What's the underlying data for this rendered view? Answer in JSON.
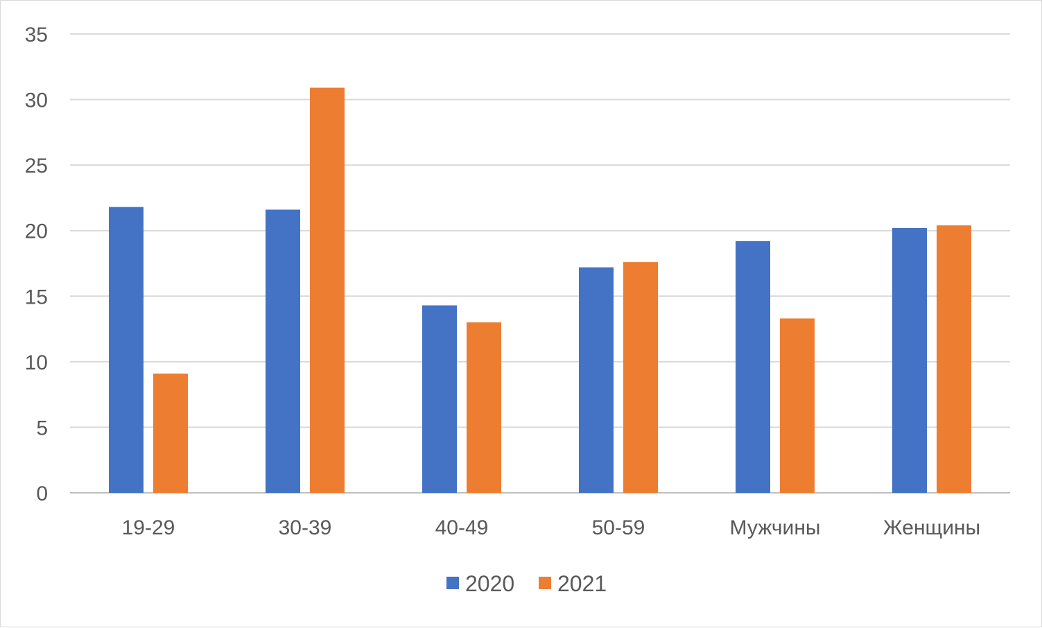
{
  "chart_data": {
    "type": "bar",
    "title": "",
    "xlabel": "",
    "ylabel": "",
    "categories": [
      "19-29",
      "30-39",
      "40-49",
      "50-59",
      "Мужчины",
      "Женщины"
    ],
    "series": [
      {
        "name": "2020",
        "color": "#4472c4",
        "values": [
          21.8,
          21.6,
          14.3,
          17.2,
          19.2,
          20.2
        ]
      },
      {
        "name": "2021",
        "color": "#ed7d31",
        "values": [
          9.1,
          30.9,
          13.0,
          17.6,
          13.3,
          20.4
        ]
      }
    ],
    "ylim": [
      0,
      35
    ],
    "yticks": [
      "0",
      "5",
      "10",
      "15",
      "20",
      "25",
      "30",
      "35"
    ],
    "grid": true,
    "legend": "bottom"
  }
}
